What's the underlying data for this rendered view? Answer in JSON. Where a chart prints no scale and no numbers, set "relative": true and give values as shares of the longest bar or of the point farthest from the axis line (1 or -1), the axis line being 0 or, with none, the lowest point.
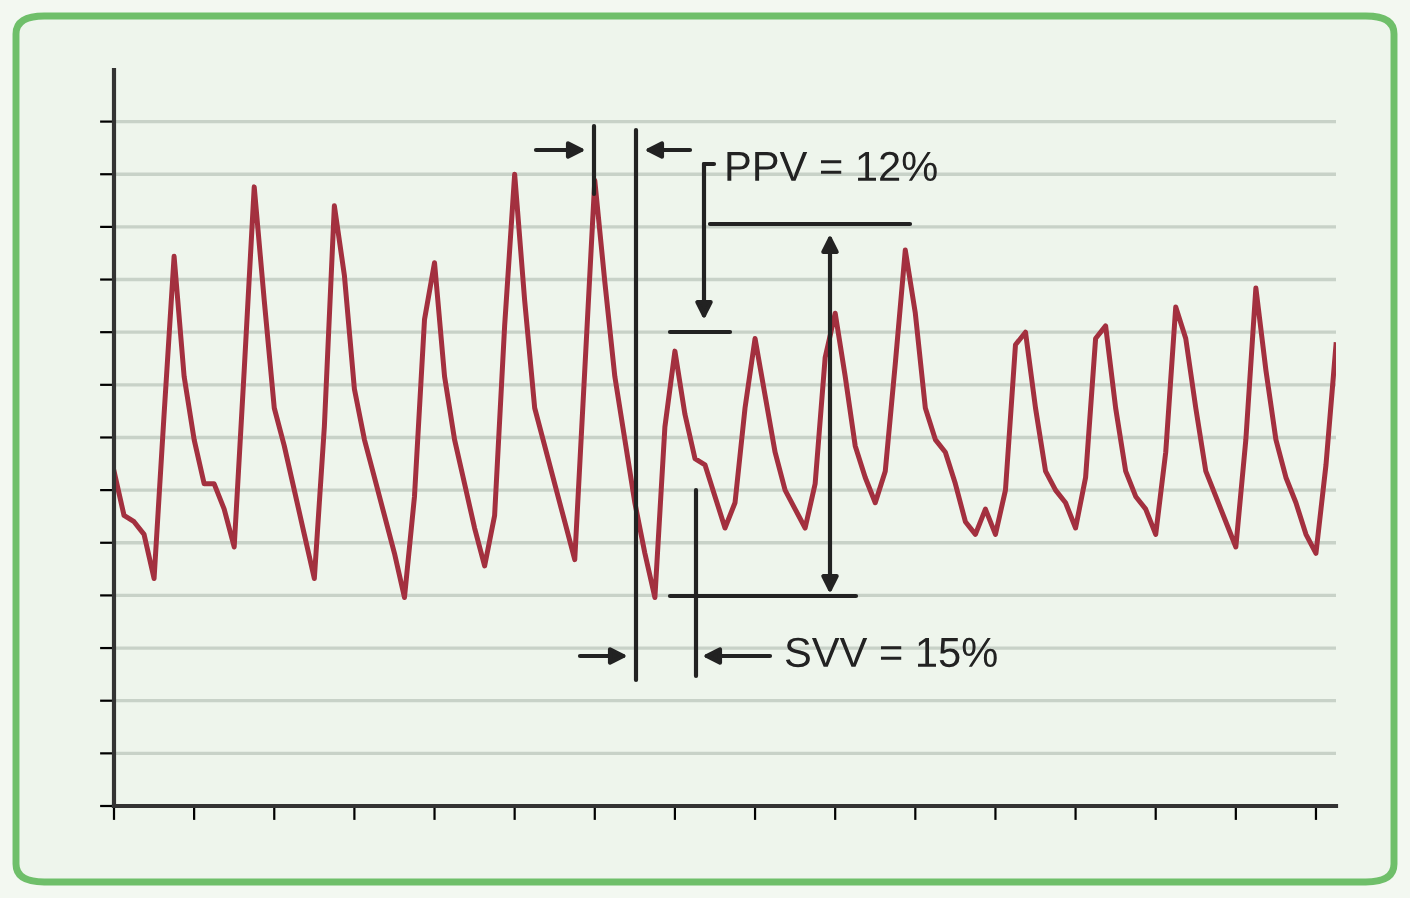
{
  "chart_data": {
    "type": "line",
    "relative": true,
    "grid": "y",
    "categories": [
      null,
      null,
      null,
      null,
      null,
      null,
      null,
      null,
      null,
      null,
      null,
      null,
      null,
      null,
      null,
      null,
      null,
      null,
      null,
      null,
      null,
      null,
      null,
      null,
      null,
      null,
      null,
      null,
      null,
      null,
      null,
      null,
      null,
      null,
      null,
      null,
      null,
      null,
      null,
      null,
      null,
      null,
      null,
      null,
      null,
      null,
      null,
      null,
      null,
      null,
      null,
      null,
      null,
      null,
      null,
      null,
      null,
      null,
      null,
      null,
      null,
      null,
      null,
      null,
      null,
      null,
      null,
      null,
      null,
      null,
      null,
      null,
      null,
      null,
      null,
      null,
      null,
      null,
      null,
      null,
      null,
      null,
      null,
      null,
      null,
      null,
      null,
      null,
      null,
      null,
      null,
      null,
      null,
      null,
      null,
      null,
      null,
      null,
      null,
      null,
      null,
      null,
      null,
      null,
      null,
      null,
      null,
      null,
      null,
      null,
      null,
      null,
      null,
      null,
      null,
      null,
      null,
      null,
      null,
      null,
      null,
      null,
      null
    ],
    "series": [
      {
        "color": "#a3303f",
        "values": [
          0.53,
          0.46,
          0.45,
          0.43,
          0.36,
          0.62,
          0.87,
          0.68,
          0.58,
          0.51,
          0.51,
          0.47,
          0.41,
          0.69,
          0.98,
          0.8,
          0.63,
          0.57,
          0.5,
          0.43,
          0.36,
          0.6,
          0.95,
          0.84,
          0.66,
          0.58,
          0.52,
          0.46,
          0.4,
          0.33,
          0.49,
          0.77,
          0.86,
          0.68,
          0.58,
          0.51,
          0.44,
          0.38,
          0.46,
          0.76,
          1,
          0.8,
          0.63,
          0.57,
          0.51,
          0.45,
          0.39,
          0.69,
          0.99,
          0.83,
          0.68,
          0.58,
          0.48,
          0.4,
          0.33,
          0.6,
          0.72,
          0.62,
          0.55,
          0.54,
          0.49,
          0.44,
          0.48,
          0.63,
          0.74,
          0.65,
          0.56,
          0.5,
          0.47,
          0.44,
          0.51,
          0.71,
          0.78,
          0.68,
          0.57,
          0.52,
          0.48,
          0.53,
          0.7,
          0.88,
          0.78,
          0.63,
          0.58,
          0.56,
          0.51,
          0.45,
          0.43,
          0.47,
          0.43,
          0.5,
          0.73,
          0.75,
          0.63,
          0.53,
          0.5,
          0.48,
          0.44,
          0.52,
          0.74,
          0.76,
          0.63,
          0.53,
          0.49,
          0.47,
          0.43,
          0.56,
          0.79,
          0.74,
          0.63,
          0.53,
          0.49,
          0.45,
          0.41,
          0.58,
          0.82,
          0.69,
          0.58,
          0.52,
          0.48,
          0.43,
          0.4,
          0.54,
          0.73
        ]
      }
    ],
    "annotations": [
      "PPV = 12%",
      "SVV = 15%"
    ]
  }
}
